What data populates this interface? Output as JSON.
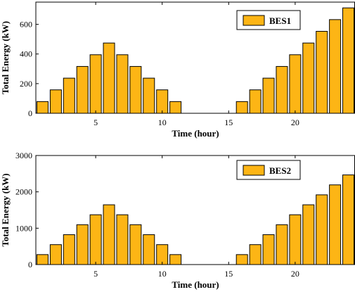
{
  "chart_data": [
    {
      "type": "bar",
      "x": [
        1,
        2,
        3,
        4,
        5,
        6,
        7,
        8,
        9,
        10,
        11,
        12,
        13,
        14,
        15,
        16,
        17,
        18,
        19,
        20,
        21,
        22,
        23,
        24
      ],
      "series": [
        {
          "name": "BES1",
          "values": [
            79,
            158,
            237,
            316,
            395,
            474,
            395,
            316,
            237,
            158,
            79,
            0,
            0,
            0,
            0,
            79,
            158,
            237,
            316,
            395,
            474,
            553,
            632,
            711
          ]
        }
      ],
      "xlabel": "Time (hour)",
      "ylabel": "Total Energy (kW)",
      "xlim": [
        0.5,
        24.5
      ],
      "ylim": [
        0,
        750
      ],
      "xticks": [
        5,
        10,
        15,
        20
      ],
      "yticks": [
        0,
        200,
        400,
        600
      ],
      "legend_position": "top-right",
      "grid": false,
      "bar_color": "#FDB515"
    },
    {
      "type": "bar",
      "x": [
        1,
        2,
        3,
        4,
        5,
        6,
        7,
        8,
        9,
        10,
        11,
        12,
        13,
        14,
        15,
        16,
        17,
        18,
        19,
        20,
        21,
        22,
        23,
        24
      ],
      "series": [
        {
          "name": "BES2",
          "values": [
            274,
            548,
            822,
            1096,
            1370,
            1644,
            1370,
            1096,
            822,
            548,
            274,
            0,
            0,
            0,
            0,
            274,
            548,
            822,
            1096,
            1370,
            1644,
            1918,
            2192,
            2466
          ]
        }
      ],
      "xlabel": "Time (hour)",
      "ylabel": "Total Energy (kW)",
      "xlim": [
        0.5,
        24.5
      ],
      "ylim": [
        0,
        3000
      ],
      "xticks": [
        5,
        10,
        15,
        20
      ],
      "yticks": [
        0,
        1000,
        2000,
        3000
      ],
      "legend_position": "top-right",
      "grid": false,
      "bar_color": "#FDB515"
    }
  ]
}
